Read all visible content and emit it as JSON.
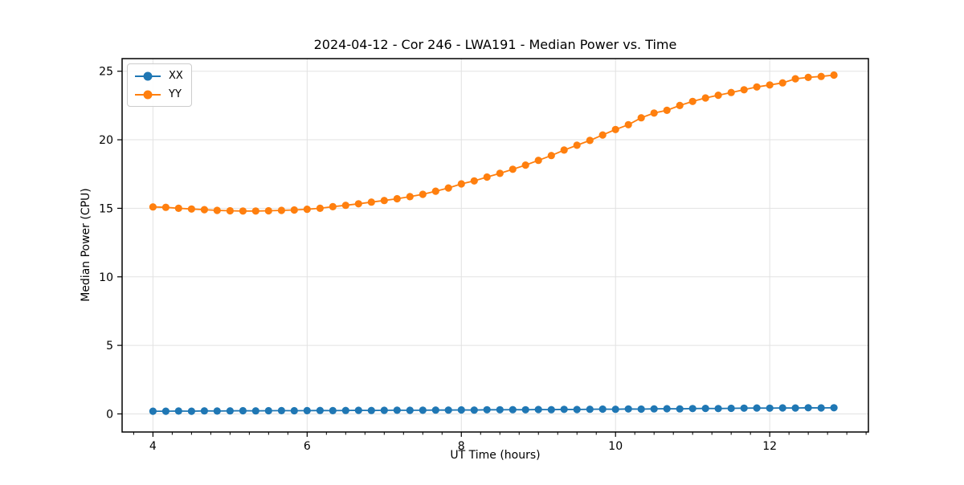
{
  "chart_data": {
    "type": "line",
    "title": "2024-04-12 - Cor 246 - LWA191 - Median Power vs. Time",
    "xlabel": "UT Time (hours)",
    "ylabel": "Median Power (CPU)",
    "grid": true,
    "legend_position": "upper left",
    "xlim": [
      3.6,
      13.28
    ],
    "ylim": [
      -1.32,
      25.92
    ],
    "xticks": [
      4,
      6,
      8,
      10,
      12
    ],
    "yticks": [
      0,
      5,
      10,
      15,
      20,
      25
    ],
    "x_minor_step": 0.25,
    "grid_color": "#e2e2e2",
    "x": [
      4.0,
      4.167,
      4.333,
      4.5,
      4.667,
      4.833,
      5.0,
      5.167,
      5.333,
      5.5,
      5.667,
      5.833,
      6.0,
      6.167,
      6.333,
      6.5,
      6.667,
      6.833,
      7.0,
      7.167,
      7.333,
      7.5,
      7.667,
      7.833,
      8.0,
      8.167,
      8.333,
      8.5,
      8.667,
      8.833,
      9.0,
      9.167,
      9.333,
      9.5,
      9.667,
      9.833,
      10.0,
      10.167,
      10.333,
      10.5,
      10.667,
      10.833,
      11.0,
      11.167,
      11.333,
      11.5,
      11.667,
      11.833,
      12.0,
      12.167,
      12.333,
      12.5,
      12.667,
      12.833
    ],
    "series": [
      {
        "name": "XX",
        "color": "#1f77b4",
        "values": [
          0.2,
          0.2,
          0.21,
          0.2,
          0.22,
          0.21,
          0.22,
          0.23,
          0.22,
          0.23,
          0.24,
          0.23,
          0.24,
          0.25,
          0.24,
          0.25,
          0.26,
          0.25,
          0.26,
          0.27,
          0.26,
          0.27,
          0.28,
          0.28,
          0.29,
          0.28,
          0.3,
          0.3,
          0.31,
          0.3,
          0.32,
          0.31,
          0.33,
          0.32,
          0.34,
          0.35,
          0.34,
          0.36,
          0.35,
          0.37,
          0.38,
          0.37,
          0.39,
          0.4,
          0.39,
          0.41,
          0.42,
          0.43,
          0.42,
          0.44,
          0.43,
          0.45,
          0.44,
          0.45
        ]
      },
      {
        "name": "YY",
        "color": "#ff7f0e",
        "values": [
          15.1,
          15.07,
          15.0,
          14.95,
          14.9,
          14.85,
          14.82,
          14.8,
          14.8,
          14.82,
          14.85,
          14.88,
          14.93,
          15.0,
          15.12,
          15.22,
          15.33,
          15.45,
          15.57,
          15.7,
          15.85,
          16.02,
          16.25,
          16.48,
          16.78,
          17.0,
          17.28,
          17.55,
          17.85,
          18.15,
          18.5,
          18.85,
          19.25,
          19.6,
          19.95,
          20.35,
          20.75,
          21.1,
          21.6,
          21.95,
          22.15,
          22.5,
          22.8,
          23.05,
          23.25,
          23.45,
          23.65,
          23.85,
          24.0,
          24.15,
          24.45,
          24.55,
          24.62,
          24.72
        ]
      }
    ]
  }
}
